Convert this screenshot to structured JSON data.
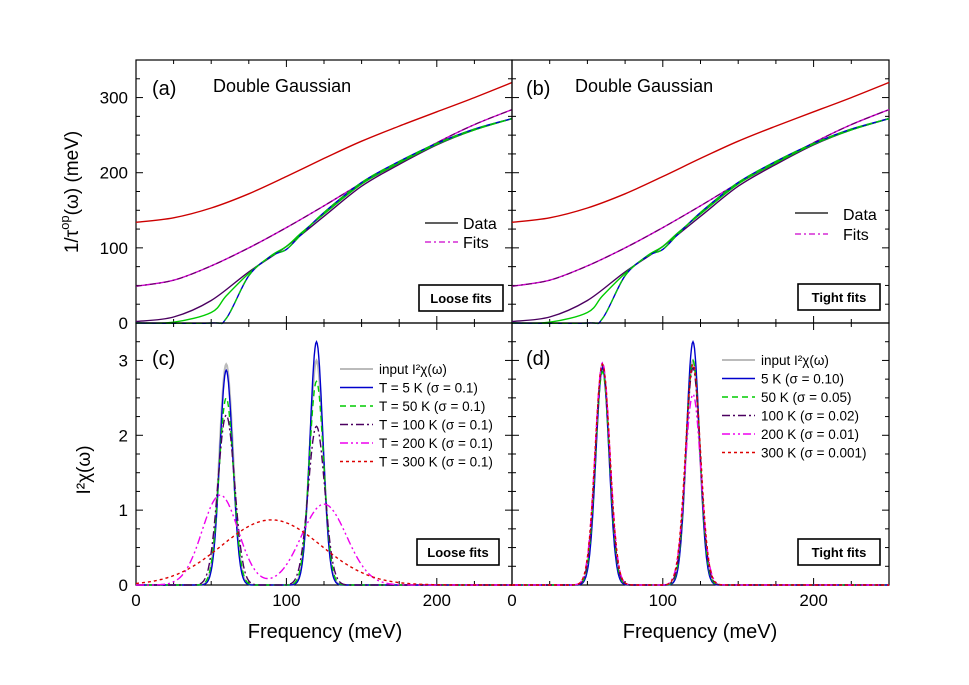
{
  "x_axis_label": "Frequency (meV)",
  "chart_data": [
    {
      "panel": "(a)",
      "type": "line",
      "title": "Double Gaussian",
      "ylabel_main": "1/τ",
      "ylabel_sup": "op",
      "ylabel_rest": "(ω) (meV)",
      "xlim": [
        0,
        250
      ],
      "ylim": [
        0,
        350
      ],
      "xticks": [
        "0",
        "100",
        "200"
      ],
      "yticks": [
        "0",
        "100",
        "200",
        "300"
      ],
      "legend": [
        "Data",
        "Fits"
      ],
      "box_label": "Loose fits",
      "series": [
        {
          "name": "300 K",
          "color": "#cc0000",
          "x": [
            0,
            25,
            50,
            75,
            100,
            125,
            150,
            175,
            200,
            225,
            250
          ],
          "values": [
            134,
            140,
            153,
            172,
            195,
            219,
            242,
            262,
            281,
            300,
            320
          ]
        },
        {
          "name": "200 K",
          "color": "#cc00cc",
          "x": [
            0,
            25,
            50,
            75,
            100,
            125,
            150,
            175,
            200,
            225,
            250
          ],
          "values": [
            49,
            57,
            76,
            100,
            127,
            156,
            186,
            213,
            240,
            264,
            284
          ]
        },
        {
          "name": "100 K",
          "color": "#4b0060",
          "x": [
            0,
            25,
            50,
            75,
            100,
            125,
            150,
            175,
            200,
            225,
            250
          ],
          "values": [
            2,
            8,
            30,
            68,
            102,
            142,
            182,
            211,
            237,
            257,
            272
          ]
        },
        {
          "name": "50 K",
          "color": "#00cc00",
          "x": [
            0,
            25,
            50,
            60,
            75,
            90,
            100,
            110,
            125,
            150,
            175,
            200,
            225,
            250
          ],
          "values": [
            0,
            1,
            14,
            36,
            66,
            90,
            102,
            120,
            145,
            185,
            213,
            238,
            257,
            272
          ]
        },
        {
          "name": "5 K",
          "color": "#0000cc",
          "x": [
            0,
            50,
            60,
            75,
            90,
            100,
            110,
            125,
            150,
            175,
            200,
            225,
            250
          ],
          "values": [
            0,
            0,
            6,
            63,
            89,
            98,
            118,
            147,
            187,
            215,
            239,
            258,
            272
          ]
        }
      ]
    },
    {
      "panel": "(b)",
      "type": "line",
      "title": "Double Gaussian",
      "xlim": [
        0,
        250
      ],
      "ylim": [
        0,
        350
      ],
      "xticks": [
        "0",
        "100",
        "200"
      ],
      "legend": [
        "Data",
        "Fits"
      ],
      "box_label": "Tight fits",
      "series": [
        {
          "name": "300 K",
          "color": "#cc0000",
          "x": [
            0,
            25,
            50,
            75,
            100,
            125,
            150,
            175,
            200,
            225,
            250
          ],
          "values": [
            134,
            140,
            153,
            172,
            195,
            219,
            242,
            262,
            281,
            300,
            320
          ]
        },
        {
          "name": "200 K",
          "color": "#cc00cc",
          "x": [
            0,
            25,
            50,
            75,
            100,
            125,
            150,
            175,
            200,
            225,
            250
          ],
          "values": [
            49,
            57,
            76,
            100,
            127,
            156,
            186,
            213,
            240,
            264,
            284
          ]
        },
        {
          "name": "100 K",
          "color": "#4b0060",
          "x": [
            0,
            25,
            50,
            75,
            100,
            125,
            150,
            175,
            200,
            225,
            250
          ],
          "values": [
            2,
            8,
            30,
            68,
            102,
            142,
            182,
            211,
            237,
            257,
            272
          ]
        },
        {
          "name": "50 K",
          "color": "#00cc00",
          "x": [
            0,
            25,
            50,
            60,
            75,
            90,
            100,
            110,
            125,
            150,
            175,
            200,
            225,
            250
          ],
          "values": [
            0,
            1,
            14,
            36,
            66,
            90,
            102,
            120,
            145,
            185,
            213,
            238,
            257,
            272
          ]
        },
        {
          "name": "5 K",
          "color": "#0000cc",
          "x": [
            0,
            50,
            60,
            75,
            90,
            100,
            110,
            125,
            150,
            175,
            200,
            225,
            250
          ],
          "values": [
            0,
            0,
            6,
            63,
            89,
            98,
            118,
            147,
            187,
            215,
            239,
            258,
            272
          ]
        }
      ]
    },
    {
      "panel": "(c)",
      "type": "line",
      "ylabel": "I²χ(ω)",
      "xlim": [
        0,
        250
      ],
      "ylim": [
        0,
        3.5
      ],
      "xticks": [
        "0",
        "100",
        "200"
      ],
      "yticks": [
        "0",
        "1",
        "2",
        "3"
      ],
      "box_label": "Loose fits",
      "legend": [
        "input I²χ(ω)",
        "T =    5 K (σ = 0.1)",
        "T =   50 K (σ = 0.1)",
        "T = 100 K (σ = 0.1)",
        "T = 200 K (σ = 0.1)",
        "T = 300 K (σ = 0.1)"
      ],
      "series": [
        {
          "name": "input",
          "color": "#bbbbbb",
          "dash": "",
          "peaks": [
            {
              "mu": 60,
              "sigma": 4.5,
              "amp": 2.95
            },
            {
              "mu": 120,
              "sigma": 4.5,
              "amp": 3.0
            }
          ]
        },
        {
          "name": "5 K",
          "color": "#0000cc",
          "dash": "",
          "peaks": [
            {
              "mu": 60,
              "sigma": 4.3,
              "amp": 2.87
            },
            {
              "mu": 120,
              "sigma": 4.3,
              "amp": 3.25
            }
          ]
        },
        {
          "name": "50 K",
          "color": "#00cc00",
          "dash": "6,4",
          "peaks": [
            {
              "mu": 60,
              "sigma": 4.8,
              "amp": 2.5
            },
            {
              "mu": 120,
              "sigma": 4.8,
              "amp": 2.72
            }
          ]
        },
        {
          "name": "100 K",
          "color": "#4b0060",
          "dash": "8,3,2,3",
          "peaks": [
            {
              "mu": 60,
              "sigma": 5.5,
              "amp": 2.27
            },
            {
              "mu": 120,
              "sigma": 5.5,
              "amp": 2.12
            }
          ]
        },
        {
          "name": "200 K",
          "color": "#ee00ee",
          "dash": "8,3,2,3,2,3",
          "peaks": [
            {
              "mu": 56,
              "sigma": 12,
              "amp": 1.2
            },
            {
              "mu": 125,
              "sigma": 15,
              "amp": 1.08
            }
          ]
        },
        {
          "name": "300 K",
          "color": "#dd0000",
          "dash": "3,3",
          "peaks": [
            {
              "mu": 90,
              "sigma": 33,
              "amp": 0.87
            }
          ]
        }
      ]
    },
    {
      "panel": "(d)",
      "type": "line",
      "xlim": [
        0,
        250
      ],
      "ylim": [
        0,
        3.5
      ],
      "xticks": [
        "0",
        "100",
        "200"
      ],
      "box_label": "Tight fits",
      "legend": [
        "input I²χ(ω)",
        "5 K (σ = 0.10)",
        "50 K (σ = 0.05)",
        "100 K (σ = 0.02)",
        "200 K (σ = 0.01)",
        "300 K (σ = 0.001)"
      ],
      "series": [
        {
          "name": "input",
          "color": "#bbbbbb",
          "dash": "",
          "peaks": [
            {
              "mu": 60,
              "sigma": 4.5,
              "amp": 2.95
            },
            {
              "mu": 120,
              "sigma": 4.5,
              "amp": 3.0
            }
          ]
        },
        {
          "name": "5 K",
          "color": "#0000cc",
          "dash": "",
          "peaks": [
            {
              "mu": 60,
              "sigma": 4.3,
              "amp": 2.9
            },
            {
              "mu": 120,
              "sigma": 4.3,
              "amp": 3.25
            }
          ]
        },
        {
          "name": "50 K",
          "color": "#00cc00",
          "dash": "6,4",
          "peaks": [
            {
              "mu": 60,
              "sigma": 4.6,
              "amp": 2.85
            },
            {
              "mu": 120,
              "sigma": 4.6,
              "amp": 3.0
            }
          ]
        },
        {
          "name": "100 K",
          "color": "#4b0060",
          "dash": "8,3,2,3",
          "peaks": [
            {
              "mu": 60,
              "sigma": 4.7,
              "amp": 2.93
            },
            {
              "mu": 120,
              "sigma": 4.8,
              "amp": 2.9
            }
          ]
        },
        {
          "name": "200 K",
          "color": "#ee00ee",
          "dash": "8,3,2,3,2,3",
          "peaks": [
            {
              "mu": 60,
              "sigma": 4.9,
              "amp": 2.97
            },
            {
              "mu": 120,
              "sigma": 5.2,
              "amp": 2.55
            }
          ]
        },
        {
          "name": "300 K",
          "color": "#dd0000",
          "dash": "3,3",
          "peaks": [
            {
              "mu": 60,
              "sigma": 4.9,
              "amp": 2.95
            },
            {
              "mu": 120,
              "sigma": 5.0,
              "amp": 2.95
            }
          ]
        }
      ]
    }
  ]
}
